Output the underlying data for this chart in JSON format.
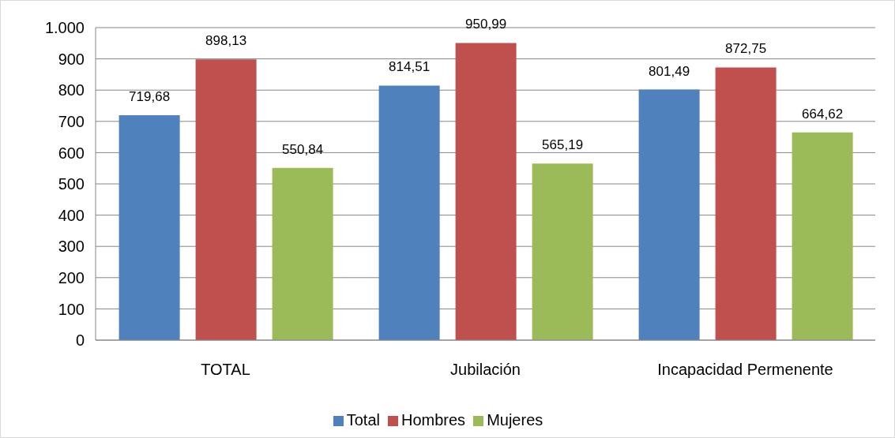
{
  "chart_data": {
    "type": "bar",
    "categories": [
      "TOTAL",
      "Jubilación",
      "Incapacidad Permenente"
    ],
    "series": [
      {
        "name": "Total",
        "color": "#4f81bd",
        "values": [
          719.68,
          814.51,
          801.49
        ],
        "value_labels": [
          "719,68",
          "814,51",
          "801,49"
        ]
      },
      {
        "name": "Hombres",
        "color": "#c0504d",
        "values": [
          898.13,
          950.99,
          872.75
        ],
        "value_labels": [
          "898,13",
          "950,99",
          "872,75"
        ]
      },
      {
        "name": "Mujeres",
        "color": "#9bbb59",
        "values": [
          550.84,
          565.19,
          664.62
        ],
        "value_labels": [
          "550,84",
          "565,19",
          "664,62"
        ]
      }
    ],
    "ylim": [
      0,
      1000
    ],
    "yticks": [
      0,
      100,
      200,
      300,
      400,
      500,
      600,
      700,
      800,
      900,
      {
        "value": 1000,
        "label": "1.000"
      }
    ],
    "grid": "y",
    "legend": "bottom"
  }
}
